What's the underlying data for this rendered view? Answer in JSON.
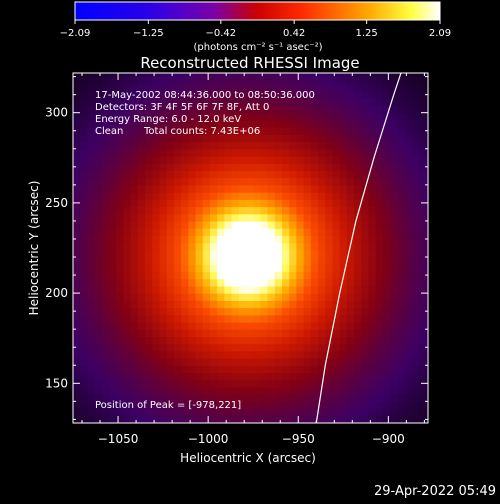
{
  "chart_data": {
    "type": "heatmap",
    "title": "Reconstructed RHESSI Image",
    "xlabel": "Heliocentric X (arcsec)",
    "ylabel": "Heliocentric Y (arcsec)",
    "xlim": [
      -1075,
      -878
    ],
    "ylim": [
      128,
      322
    ],
    "x_ticks": [
      -1050,
      -1000,
      -950,
      -900
    ],
    "y_ticks": [
      150,
      200,
      250,
      300
    ],
    "colorbar": {
      "ticks": [
        "-2.09",
        "-1.25",
        "-0.42",
        "0.42",
        "1.25",
        "2.09"
      ],
      "range": [
        -2.09,
        2.09
      ],
      "unit_label": "(photons cm⁻² s⁻¹ asec⁻²)"
    },
    "annotations": {
      "line1": "17-May-2002 08:44:36.000 to 08:50:36.000",
      "line2": "Detectors: 3F 4F 5F 6F 7F 8F, Att 0",
      "line3": "Energy Range: 6.0 - 12.0 keV",
      "line4_a": "Clean",
      "line4_b": "Total counts: 7.43E+06",
      "peak": "Position of Peak = [-978,221]"
    },
    "peak": [
      -978,
      221
    ],
    "peak_value": 2.09,
    "source_sigma_arcsec": 42,
    "limb_curve": [
      [
        -940,
        128
      ],
      [
        -935,
        160
      ],
      [
        -927,
        200
      ],
      [
        -918,
        240
      ],
      [
        -908,
        275
      ],
      [
        -897,
        310
      ],
      [
        -893,
        322
      ]
    ]
  },
  "footer": {
    "timestamp": "29-Apr-2022 05:49"
  }
}
